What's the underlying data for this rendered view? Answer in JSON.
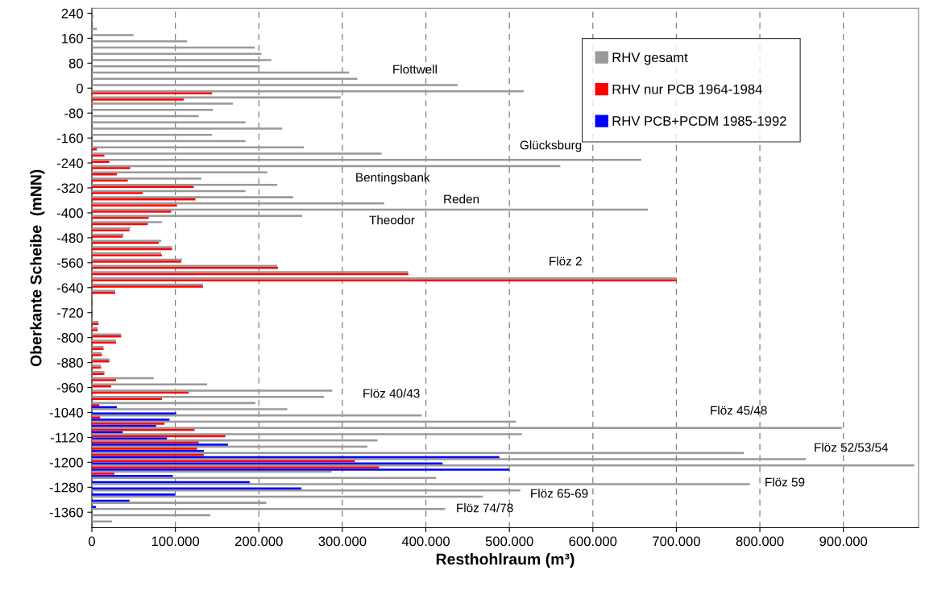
{
  "chart_data": {
    "type": "bar",
    "orientation": "horizontal",
    "xlabel": "Resthohlraum (m³)",
    "ylabel": "Oberkante Scheibe  (mNN)",
    "x": [
      230,
      210,
      190,
      170,
      150,
      130,
      110,
      90,
      70,
      50,
      30,
      10,
      -10,
      -30,
      -50,
      -70,
      -90,
      -110,
      -130,
      -150,
      -170,
      -190,
      -210,
      -230,
      -250,
      -270,
      -290,
      -310,
      -330,
      -350,
      -370,
      -390,
      -410,
      -430,
      -450,
      -470,
      -490,
      -510,
      -530,
      -550,
      -570,
      -590,
      -610,
      -630,
      -650,
      -670,
      -690,
      -710,
      -730,
      -750,
      -770,
      -790,
      -810,
      -830,
      -850,
      -870,
      -890,
      -910,
      -930,
      -950,
      -970,
      -990,
      -1010,
      -1030,
      -1050,
      -1070,
      -1090,
      -1110,
      -1130,
      -1150,
      -1170,
      -1190,
      -1210,
      -1230,
      -1250,
      -1270,
      -1290,
      -1310,
      -1330,
      -1350,
      -1370,
      -1390
    ],
    "series": [
      {
        "name": "RHV gesamt",
        "color": "#999999",
        "values": [
          2000,
          null,
          6000,
          50000,
          114000,
          195000,
          203000,
          215000,
          201000,
          308000,
          318000,
          438000,
          517000,
          298000,
          169000,
          145000,
          128000,
          184000,
          228000,
          144000,
          184000,
          254000,
          347000,
          658000,
          561000,
          210000,
          131000,
          222000,
          184000,
          241000,
          350000,
          666000,
          252000,
          84000,
          46000,
          38000,
          83000,
          96000,
          83000,
          108000,
          222000,
          379000,
          700000,
          133000,
          28000,
          null,
          null,
          null,
          null,
          8000,
          7000,
          35000,
          29000,
          14000,
          12000,
          21000,
          11000,
          15000,
          74000,
          138000,
          288000,
          278000,
          196000,
          234000,
          395000,
          508000,
          898000,
          515000,
          342000,
          330000,
          781000,
          855000,
          985000,
          287000,
          412000,
          788000,
          513000,
          468000,
          209000,
          423000,
          142000,
          24000
        ]
      },
      {
        "name": "RHV nur PCB 1964-1984",
        "color": "#ff0000",
        "values": [
          null,
          null,
          null,
          null,
          null,
          null,
          null,
          null,
          null,
          null,
          null,
          null,
          144000,
          110000,
          1000,
          null,
          null,
          null,
          null,
          null,
          null,
          6000,
          15000,
          21000,
          46000,
          30000,
          43000,
          122000,
          61000,
          124000,
          102000,
          95000,
          68000,
          67000,
          45000,
          37000,
          80000,
          96000,
          84000,
          107000,
          223000,
          379000,
          700000,
          133000,
          28000,
          null,
          null,
          null,
          null,
          8000,
          7000,
          35000,
          29000,
          14000,
          12000,
          21000,
          11000,
          15000,
          29000,
          23000,
          116000,
          84000,
          9000,
          null,
          10000,
          87000,
          123000,
          160000,
          128000,
          126000,
          134000,
          315000,
          344000,
          27000,
          null,
          null,
          null,
          null,
          null,
          null,
          null,
          null
        ]
      },
      {
        "name": "RHV PCB+PCDM 1985-1992",
        "color": "#0000ff",
        "values": [
          null,
          null,
          null,
          null,
          null,
          null,
          null,
          null,
          null,
          null,
          null,
          null,
          null,
          null,
          null,
          null,
          null,
          null,
          null,
          null,
          null,
          null,
          null,
          null,
          null,
          null,
          null,
          null,
          null,
          null,
          null,
          null,
          null,
          null,
          null,
          null,
          null,
          null,
          null,
          null,
          null,
          null,
          null,
          null,
          null,
          null,
          null,
          null,
          null,
          null,
          null,
          null,
          null,
          null,
          null,
          null,
          null,
          null,
          null,
          null,
          null,
          null,
          null,
          30000,
          101000,
          93000,
          77000,
          37000,
          90000,
          163000,
          134000,
          488000,
          420000,
          500000,
          97000,
          189000,
          251000,
          100000,
          45000,
          5000,
          null,
          null
        ]
      }
    ],
    "xlim": [
      0,
      990000
    ],
    "xticks": [
      0,
      {
        "value": 100000,
        "label": "100.000"
      },
      {
        "value": 200000,
        "label": "200.000"
      },
      {
        "value": 300000,
        "label": "300.000"
      },
      {
        "value": 400000,
        "label": "400.000"
      },
      {
        "value": 500000,
        "label": "500.000"
      },
      {
        "value": 600000,
        "label": "600.000"
      },
      {
        "value": 700000,
        "label": "700.000"
      },
      {
        "value": 800000,
        "label": "800.000"
      },
      {
        "value": 900000,
        "label": "900.000"
      }
    ],
    "ylim": [
      -1410,
      256
    ],
    "yticks": [
      240,
      160,
      80,
      0,
      -80,
      -160,
      -240,
      -320,
      -400,
      -480,
      -560,
      -640,
      -720,
      -800,
      -880,
      -960,
      -1040,
      -1120,
      -1200,
      -1280,
      -1360
    ],
    "grid": "x",
    "legend": "top right",
    "annotations": [
      "Flottwell",
      "Glücksburg",
      "Bentingsbank",
      "Reden",
      "Theodor",
      "Flöz 2",
      "Flöz 40/43",
      "Flöz 45/48",
      "Flöz 52/53/54",
      "Flöz 59",
      "Flöz 65-69",
      "Flöz 74/78"
    ]
  }
}
